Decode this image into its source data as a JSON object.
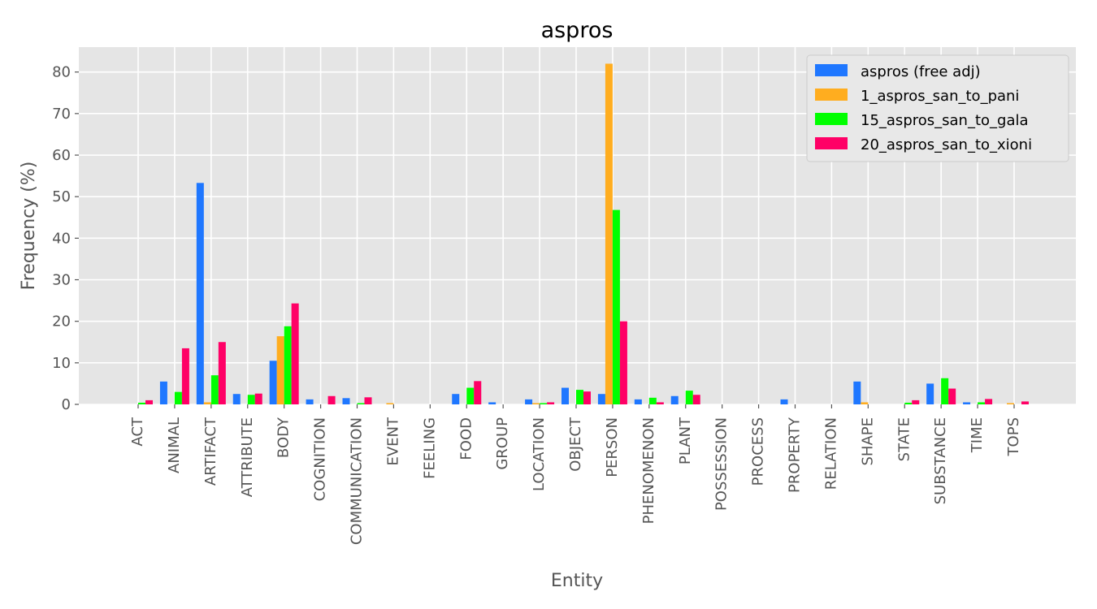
{
  "chart_data": {
    "type": "bar",
    "title": "aspros",
    "xlabel": "Entity",
    "ylabel": "Frequency (%)",
    "ylim": [
      0,
      86
    ],
    "yticks": [
      0,
      10,
      20,
      30,
      40,
      50,
      60,
      70,
      80
    ],
    "grid": true,
    "legend_position": "top-right",
    "categories": [
      "ACT",
      "ANIMAL",
      "ARTIFACT",
      "ATTRIBUTE",
      "BODY",
      "COGNITION",
      "COMMUNICATION",
      "EVENT",
      "FEELING",
      "FOOD",
      "GROUP",
      "LOCATION",
      "OBJECT",
      "PERSON",
      "PHENOMENON",
      "PLANT",
      "POSSESSION",
      "PROCESS",
      "PROPERTY",
      "RELATION",
      "SHAPE",
      "STATE",
      "SUBSTANCE",
      "TIME",
      "TOPS"
    ],
    "series": [
      {
        "name": "aspros (free adj)",
        "color": "#1f77ff",
        "values": [
          0,
          5.5,
          53.3,
          2.5,
          10.5,
          1.2,
          1.5,
          0,
          0,
          2.5,
          0.5,
          1.2,
          4.0,
          2.5,
          1.2,
          2.0,
          0,
          0,
          1.2,
          0,
          5.5,
          0,
          5.0,
          0.5,
          0
        ]
      },
      {
        "name": "1_aspros_san_to_pani",
        "color": "#ffad1f",
        "values": [
          0,
          0,
          0.5,
          0,
          16.4,
          0,
          0,
          0.3,
          0,
          0,
          0,
          0.3,
          0,
          82.0,
          0,
          0,
          0,
          0,
          0,
          0,
          0.5,
          0,
          0,
          0,
          0.3
        ]
      },
      {
        "name": "15_aspros_san_to_gala",
        "color": "#00ff00",
        "values": [
          0.4,
          3.0,
          7.0,
          2.3,
          18.8,
          0,
          0.3,
          0,
          0,
          4.0,
          0,
          0.3,
          3.5,
          46.8,
          1.6,
          3.3,
          0,
          0,
          0,
          0,
          0,
          0.4,
          6.3,
          0.5,
          0
        ]
      },
      {
        "name": "20_aspros_san_to_xioni",
        "color": "#ff0066",
        "values": [
          1.0,
          13.5,
          15.0,
          2.6,
          24.3,
          2.0,
          1.7,
          0,
          0,
          5.6,
          0,
          0.5,
          3.1,
          20.0,
          0.5,
          2.3,
          0,
          0,
          0,
          0,
          0,
          1.0,
          3.8,
          1.3,
          0.7
        ]
      }
    ]
  }
}
